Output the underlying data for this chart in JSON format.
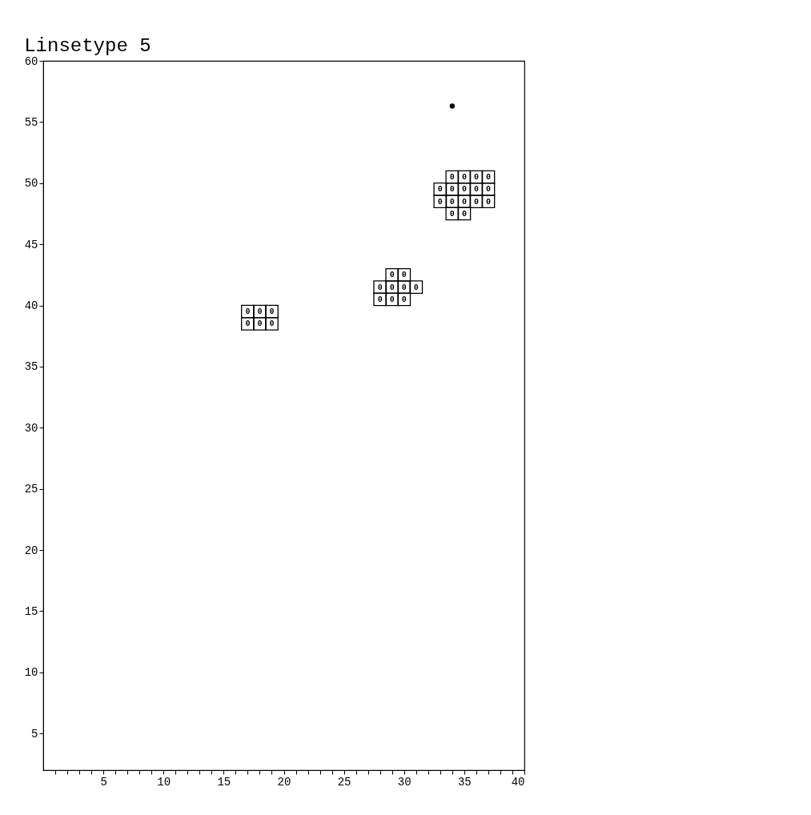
{
  "chart_data": {
    "type": "scatter",
    "title": "Linsetype 5",
    "xlim": [
      0,
      40
    ],
    "ylim": [
      2,
      60
    ],
    "xticks": [
      {
        "value": 1,
        "label": null
      },
      {
        "value": 2,
        "label": null
      },
      {
        "value": 3,
        "label": null
      },
      {
        "value": 4,
        "label": null
      },
      5,
      {
        "value": 6,
        "label": null
      },
      {
        "value": 7,
        "label": null
      },
      {
        "value": 8,
        "label": null
      },
      {
        "value": 9,
        "label": null
      },
      10,
      {
        "value": 11,
        "label": null
      },
      {
        "value": 12,
        "label": null
      },
      {
        "value": 13,
        "label": null
      },
      {
        "value": 14,
        "label": null
      },
      15,
      {
        "value": 16,
        "label": null
      },
      {
        "value": 17,
        "label": null
      },
      {
        "value": 18,
        "label": null
      },
      {
        "value": 19,
        "label": null
      },
      20,
      {
        "value": 21,
        "label": null
      },
      {
        "value": 22,
        "label": null
      },
      {
        "value": 23,
        "label": null
      },
      {
        "value": 24,
        "label": null
      },
      25,
      {
        "value": 26,
        "label": null
      },
      {
        "value": 27,
        "label": null
      },
      {
        "value": 28,
        "label": null
      },
      {
        "value": 29,
        "label": null
      },
      30,
      {
        "value": 31,
        "label": null
      },
      {
        "value": 32,
        "label": null
      },
      {
        "value": 33,
        "label": null
      },
      {
        "value": 34,
        "label": null
      },
      35,
      {
        "value": 36,
        "label": null
      },
      {
        "value": 37,
        "label": null
      },
      {
        "value": 38,
        "label": null
      },
      {
        "value": 39,
        "label": null
      },
      40
    ],
    "yticks": [
      5,
      10,
      15,
      20,
      25,
      30,
      35,
      40,
      45,
      50,
      55,
      60
    ],
    "series": [
      {
        "color": "#000000",
        "marker": "square",
        "x": [
          17,
          18,
          19,
          17,
          18,
          19,
          29,
          30,
          28,
          29,
          30,
          31,
          28,
          29,
          30,
          34,
          35,
          36,
          37,
          33,
          34,
          35,
          36,
          37,
          33,
          34,
          35,
          36,
          37,
          34,
          35
        ],
        "values": [
          39.5,
          39.5,
          39.5,
          38.5,
          38.5,
          38.5,
          42.5,
          42.5,
          41.5,
          41.5,
          41.5,
          41.5,
          40.5,
          40.5,
          40.5,
          50.5,
          50.5,
          50.5,
          50.5,
          49.5,
          49.5,
          49.5,
          49.5,
          49.5,
          48.5,
          48.5,
          48.5,
          48.5,
          48.5,
          47.5,
          47.5
        ]
      },
      {
        "color": "#000000",
        "marker": "circle",
        "x": [
          34
        ],
        "values": [
          56.3
        ]
      }
    ],
    "annotations": [
      {
        "text": "0",
        "x": 17,
        "y": 39.5
      },
      {
        "text": "0",
        "x": 18,
        "y": 39.5
      },
      {
        "text": "0",
        "x": 19,
        "y": 39.5
      },
      {
        "text": "0",
        "x": 17,
        "y": 38.5
      },
      {
        "text": "0",
        "x": 18,
        "y": 38.5
      },
      {
        "text": "0",
        "x": 19,
        "y": 38.5
      },
      {
        "text": "0",
        "x": 29,
        "y": 42.5
      },
      {
        "text": "0",
        "x": 30,
        "y": 42.5
      },
      {
        "text": "0",
        "x": 28,
        "y": 41.5
      },
      {
        "text": "0",
        "x": 29,
        "y": 41.5
      },
      {
        "text": "0",
        "x": 30,
        "y": 41.5
      },
      {
        "text": "0",
        "x": 31,
        "y": 41.5
      },
      {
        "text": "0",
        "x": 28,
        "y": 40.5
      },
      {
        "text": "0",
        "x": 29,
        "y": 40.5
      },
      {
        "text": "0",
        "x": 30,
        "y": 40.5
      },
      {
        "text": "0",
        "x": 34,
        "y": 50.5
      },
      {
        "text": "0",
        "x": 35,
        "y": 50.5
      },
      {
        "text": "0",
        "x": 36,
        "y": 50.5
      },
      {
        "text": "0",
        "x": 37,
        "y": 50.5
      },
      {
        "text": "0",
        "x": 33,
        "y": 49.5
      },
      {
        "text": "0",
        "x": 34,
        "y": 49.5
      },
      {
        "text": "0",
        "x": 35,
        "y": 49.5
      },
      {
        "text": "0",
        "x": 36,
        "y": 49.5
      },
      {
        "text": "0",
        "x": 37,
        "y": 49.5
      },
      {
        "text": "0",
        "x": 33,
        "y": 48.5
      },
      {
        "text": "0",
        "x": 34,
        "y": 48.5
      },
      {
        "text": "0",
        "x": 35,
        "y": 48.5
      },
      {
        "text": "0",
        "x": 36,
        "y": 48.5
      },
      {
        "text": "0",
        "x": 37,
        "y": 48.5
      },
      {
        "text": "0",
        "x": 34,
        "y": 47.5
      },
      {
        "text": "0",
        "x": 35,
        "y": 47.5
      }
    ]
  }
}
